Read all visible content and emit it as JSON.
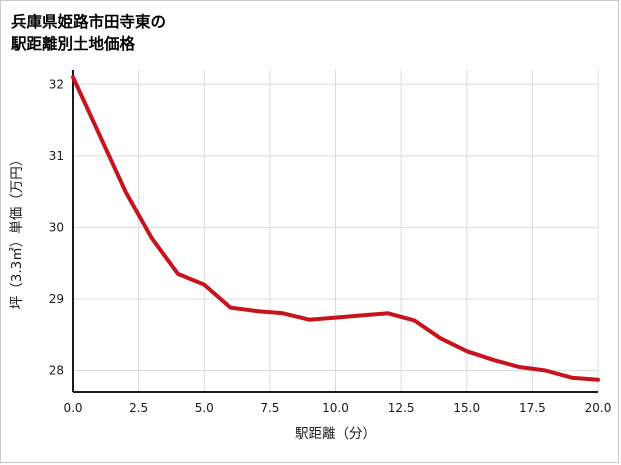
{
  "title": {
    "line1": "兵庫県姫路市田寺東の",
    "line2": "駅距離別土地価格"
  },
  "chart_data": {
    "type": "line",
    "title": "兵庫県姫路市田寺東の駅距離別土地価格",
    "xlabel": "駅距離（分）",
    "ylabel": "坪（3.3㎡）単価（万円）",
    "x": [
      0,
      1,
      2,
      3,
      4,
      5,
      6,
      7,
      8,
      9,
      10,
      11,
      12,
      13,
      14,
      15,
      16,
      17,
      18,
      19,
      20
    ],
    "values": [
      32.1,
      31.3,
      30.5,
      29.85,
      29.35,
      29.2,
      28.88,
      28.83,
      28.8,
      28.71,
      28.74,
      28.77,
      28.8,
      28.7,
      28.45,
      28.27,
      28.15,
      28.05,
      28.0,
      27.9,
      27.87
    ],
    "x_ticks": [
      0,
      2.5,
      5,
      7.5,
      10,
      12.5,
      15,
      17.5,
      20
    ],
    "x_tick_labels": [
      "0.0",
      "2.5",
      "5.0",
      "7.5",
      "10.0",
      "12.5",
      "15.0",
      "17.5",
      "20.0"
    ],
    "y_ticks": [
      28,
      29,
      30,
      31,
      32
    ],
    "y_tick_labels": [
      "28",
      "29",
      "30",
      "31",
      "32"
    ],
    "xlim": [
      0,
      20
    ],
    "ylim": [
      27.7,
      32.2
    ],
    "grid": true,
    "legend_position": "none",
    "line_color": "#c8131f",
    "grid_color": "#dcdcdc",
    "axis_color": "#1a1a1a",
    "text_color": "#1a1a1a"
  }
}
